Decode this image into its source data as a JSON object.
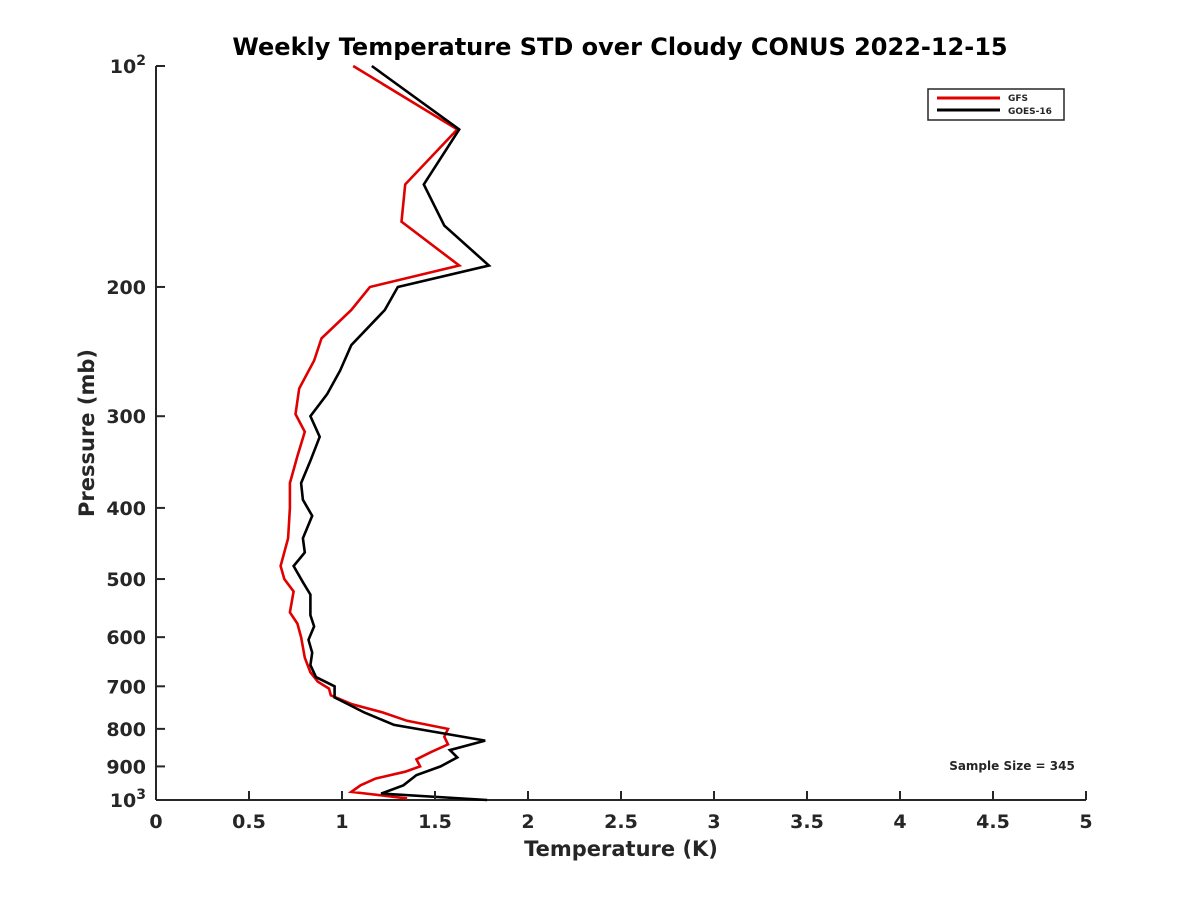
{
  "chart_data": {
    "type": "line",
    "title": "Weekly Temperature STD over Cloudy CONUS 2022-12-15",
    "xlabel": "Temperature (K)",
    "ylabel": "Pressure (mb)",
    "xlim": [
      0,
      5
    ],
    "ylim": [
      100,
      1000
    ],
    "yscale": "log",
    "y_reversed": true,
    "grid": false,
    "legend_position": "top-right",
    "x_ticks": [
      {
        "value": 0,
        "label": "0"
      },
      {
        "value": 0.5,
        "label": "0.5"
      },
      {
        "value": 1,
        "label": "1"
      },
      {
        "value": 1.5,
        "label": "1.5"
      },
      {
        "value": 2,
        "label": "2"
      },
      {
        "value": 2.5,
        "label": "2.5"
      },
      {
        "value": 3,
        "label": "3"
      },
      {
        "value": 3.5,
        "label": "3.5"
      },
      {
        "value": 4,
        "label": "4"
      },
      {
        "value": 4.5,
        "label": "4.5"
      },
      {
        "value": 5,
        "label": "5"
      }
    ],
    "y_ticks": [
      {
        "value": 100,
        "base": "10",
        "exp": "2"
      },
      {
        "value": 200,
        "label": "200"
      },
      {
        "value": 300,
        "label": "300"
      },
      {
        "value": 400,
        "label": "400"
      },
      {
        "value": 500,
        "label": "500"
      },
      {
        "value": 600,
        "label": "600"
      },
      {
        "value": 700,
        "label": "700"
      },
      {
        "value": 800,
        "label": "800"
      },
      {
        "value": 900,
        "label": "900"
      },
      {
        "value": 1000,
        "base": "10",
        "exp": "3"
      }
    ],
    "annotation": "Sample Size = 345",
    "series": [
      {
        "name": "GFS",
        "color": "#e00000",
        "points": [
          [
            1.06,
            100
          ],
          [
            1.62,
            122
          ],
          [
            1.34,
            145
          ],
          [
            1.32,
            163
          ],
          [
            1.63,
            187
          ],
          [
            1.15,
            200
          ],
          [
            1.05,
            215
          ],
          [
            0.89,
            235
          ],
          [
            0.85,
            252
          ],
          [
            0.77,
            275
          ],
          [
            0.75,
            298
          ],
          [
            0.8,
            315
          ],
          [
            0.76,
            340
          ],
          [
            0.72,
            370
          ],
          [
            0.72,
            400
          ],
          [
            0.71,
            440
          ],
          [
            0.67,
            480
          ],
          [
            0.69,
            500
          ],
          [
            0.74,
            520
          ],
          [
            0.72,
            555
          ],
          [
            0.76,
            575
          ],
          [
            0.78,
            600
          ],
          [
            0.8,
            640
          ],
          [
            0.83,
            670
          ],
          [
            0.87,
            690
          ],
          [
            0.93,
            705
          ],
          [
            0.94,
            720
          ],
          [
            1.05,
            740
          ],
          [
            1.22,
            760
          ],
          [
            1.35,
            780
          ],
          [
            1.57,
            800
          ],
          [
            1.55,
            820
          ],
          [
            1.57,
            840
          ],
          [
            1.48,
            860
          ],
          [
            1.4,
            880
          ],
          [
            1.42,
            900
          ],
          [
            1.34,
            915
          ],
          [
            1.18,
            935
          ],
          [
            1.1,
            955
          ],
          [
            1.05,
            975
          ],
          [
            1.35,
            995
          ]
        ]
      },
      {
        "name": "GOES-16",
        "color": "#000000",
        "points": [
          [
            1.16,
            100
          ],
          [
            1.63,
            122
          ],
          [
            1.44,
            145
          ],
          [
            1.55,
            165
          ],
          [
            1.79,
            187
          ],
          [
            1.3,
            200
          ],
          [
            1.23,
            215
          ],
          [
            1.05,
            240
          ],
          [
            0.99,
            260
          ],
          [
            0.92,
            280
          ],
          [
            0.83,
            300
          ],
          [
            0.88,
            320
          ],
          [
            0.83,
            345
          ],
          [
            0.78,
            370
          ],
          [
            0.79,
            390
          ],
          [
            0.84,
            410
          ],
          [
            0.79,
            440
          ],
          [
            0.8,
            460
          ],
          [
            0.74,
            480
          ],
          [
            0.79,
            505
          ],
          [
            0.83,
            525
          ],
          [
            0.83,
            560
          ],
          [
            0.85,
            580
          ],
          [
            0.82,
            605
          ],
          [
            0.84,
            630
          ],
          [
            0.83,
            655
          ],
          [
            0.86,
            680
          ],
          [
            0.96,
            700
          ],
          [
            0.96,
            725
          ],
          [
            1.03,
            740
          ],
          [
            1.12,
            760
          ],
          [
            1.28,
            790
          ],
          [
            1.77,
            830
          ],
          [
            1.58,
            855
          ],
          [
            1.62,
            875
          ],
          [
            1.53,
            900
          ],
          [
            1.4,
            925
          ],
          [
            1.33,
            955
          ],
          [
            1.21,
            980
          ],
          [
            1.78,
            1000
          ]
        ]
      }
    ]
  }
}
